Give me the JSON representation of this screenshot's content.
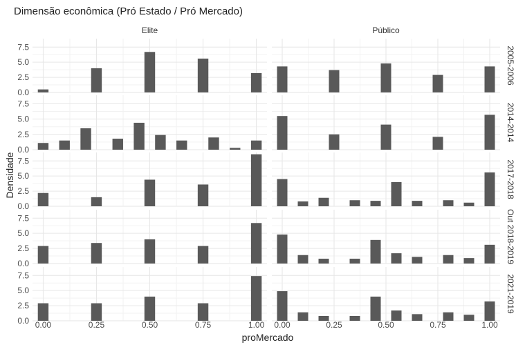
{
  "chart_data": {
    "type": "bar",
    "title": "Dimensão econômica (Pró Estado / Pró Mercado)",
    "xlabel": "proMercado",
    "ylabel": "Densidade",
    "xlim": [
      -0.05,
      1.05
    ],
    "ylim": [
      0,
      8.9
    ],
    "x_ticks": [
      "0.00",
      "0.25",
      "0.50",
      "0.75",
      "1.00"
    ],
    "y_ticks": [
      "0.0",
      "2.5",
      "5.0",
      "7.5"
    ],
    "columns": [
      "Elite",
      "Público"
    ],
    "rows": [
      "2005-2006",
      "2014-2014",
      "2017-2018",
      "Out 2018-2019",
      "2021-2019"
    ],
    "bar_width": 0.05,
    "grid": true,
    "bar_color": "#595959",
    "panels": [
      [
        {
          "x": [
            0.0,
            0.25,
            0.5,
            0.75,
            1.0
          ],
          "y": [
            0.5,
            4.0,
            6.7,
            5.6,
            3.2
          ]
        },
        {
          "x": [
            0.0,
            0.25,
            0.5,
            0.75,
            1.0
          ],
          "y": [
            4.3,
            3.7,
            4.8,
            2.9,
            4.3
          ]
        }
      ],
      [
        {
          "x": [
            0.0,
            0.1,
            0.2,
            0.35,
            0.45,
            0.55,
            0.65,
            0.8,
            0.9,
            1.0
          ],
          "y": [
            1.1,
            1.5,
            3.5,
            1.8,
            4.4,
            2.4,
            1.5,
            2.0,
            0.3,
            1.5
          ]
        },
        {
          "x": [
            0.0,
            0.25,
            0.5,
            0.75,
            1.0
          ],
          "y": [
            5.5,
            2.5,
            4.1,
            2.1,
            5.7
          ]
        }
      ],
      [
        {
          "x": [
            0.0,
            0.25,
            0.5,
            0.75,
            1.0
          ],
          "y": [
            2.2,
            1.5,
            4.4,
            3.6,
            8.6
          ]
        },
        {
          "x": [
            0.0,
            0.1,
            0.2,
            0.35,
            0.45,
            0.55,
            0.65,
            0.8,
            0.9,
            1.0
          ],
          "y": [
            4.5,
            0.8,
            1.4,
            1.0,
            0.9,
            4.0,
            0.9,
            1.0,
            0.6,
            5.6
          ]
        }
      ],
      [
        {
          "x": [
            0.0,
            0.25,
            0.5,
            0.75,
            1.0
          ],
          "y": [
            2.9,
            3.4,
            4.0,
            2.9,
            6.7
          ]
        },
        {
          "x": [
            0.0,
            0.1,
            0.2,
            0.35,
            0.45,
            0.55,
            0.65,
            0.8,
            0.9,
            1.0
          ],
          "y": [
            4.8,
            1.4,
            0.8,
            0.8,
            3.9,
            1.7,
            1.1,
            1.4,
            0.9,
            3.1
          ]
        }
      ],
      [
        {
          "x": [
            0.0,
            0.25,
            0.5,
            0.75,
            1.0
          ],
          "y": [
            2.9,
            2.9,
            4.0,
            2.9,
            7.4
          ]
        },
        {
          "x": [
            0.0,
            0.1,
            0.2,
            0.35,
            0.45,
            0.55,
            0.65,
            0.8,
            0.9,
            1.0
          ],
          "y": [
            4.9,
            1.4,
            0.8,
            0.8,
            4.0,
            1.7,
            1.1,
            1.4,
            1.0,
            3.2
          ]
        }
      ]
    ]
  }
}
